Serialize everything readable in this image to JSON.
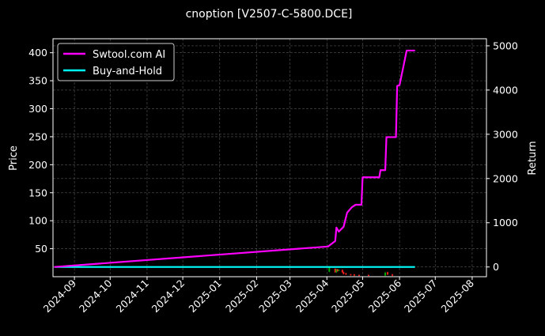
{
  "chart_data": {
    "type": "line",
    "title": "cnoption [V2507-C-5800.DCE]",
    "ylabel": "Price",
    "y2label": "Return",
    "ylim": [
      0,
      425
    ],
    "y2lim": [
      -220,
      5160
    ],
    "xlim": [
      "2024-08-14",
      "2025-08-13"
    ],
    "yticks": [
      50,
      100,
      150,
      200,
      250,
      300,
      350,
      400
    ],
    "y2ticks": [
      0,
      1000,
      2000,
      3000,
      4000,
      5000
    ],
    "xticks": [
      "2024-09",
      "2024-10",
      "2024-11",
      "2024-12",
      "2025-01",
      "2025-02",
      "2025-03",
      "2025-04",
      "2025-05",
      "2025-06",
      "2025-07",
      "2025-08"
    ],
    "grid": true,
    "legend": "top-left",
    "background": "#000000",
    "series": [
      {
        "name": "Swtool.com AI",
        "axis": "right",
        "color": "#ff00ff",
        "x": [
          "2024-08-15",
          "2025-04-02",
          "2025-04-08",
          "2025-04-09",
          "2025-04-11",
          "2025-04-15",
          "2025-04-18",
          "2025-04-22",
          "2025-04-25",
          "2025-04-30",
          "2025-05-01",
          "2025-05-15",
          "2025-05-16",
          "2025-05-20",
          "2025-05-21",
          "2025-05-29",
          "2025-05-30",
          "2025-06-01",
          "2025-06-07",
          "2025-06-14"
        ],
        "values": [
          0,
          463,
          587,
          890,
          800,
          907,
          1228,
          1352,
          1406,
          1406,
          2028,
          2028,
          2189,
          2189,
          2936,
          2936,
          4093,
          4110,
          4893,
          4893
        ]
      },
      {
        "name": "Buy-and-Hold",
        "axis": "right",
        "color": "#00ffff",
        "x": [
          "2024-08-15",
          "2025-06-14"
        ],
        "values": [
          0,
          0
        ]
      }
    ],
    "candles": {
      "axis": "left",
      "up_color": "#00aa00",
      "down_color": "#ff2020",
      "x": [
        "2025-04-03",
        "2025-04-08",
        "2025-04-09",
        "2025-04-10",
        "2025-04-11",
        "2025-04-14",
        "2025-04-15",
        "2025-04-17",
        "2025-04-21",
        "2025-04-24",
        "2025-04-28",
        "2025-05-06",
        "2025-05-20",
        "2025-05-22",
        "2025-05-26"
      ],
      "open": [
        9,
        14,
        8,
        13,
        11,
        12,
        8,
        6,
        4,
        4,
        3,
        3,
        2,
        8,
        4
      ],
      "close": [
        16,
        8,
        13,
        10,
        12,
        8,
        5,
        4,
        3,
        2,
        2,
        2,
        7,
        4,
        2
      ],
      "high": [
        18,
        15,
        14,
        14,
        13,
        13,
        9,
        7,
        5,
        5,
        4,
        4,
        9,
        9,
        5
      ],
      "low": [
        8,
        7,
        7,
        9,
        10,
        7,
        4,
        3,
        2,
        1,
        1,
        1,
        1,
        3,
        1
      ]
    }
  }
}
